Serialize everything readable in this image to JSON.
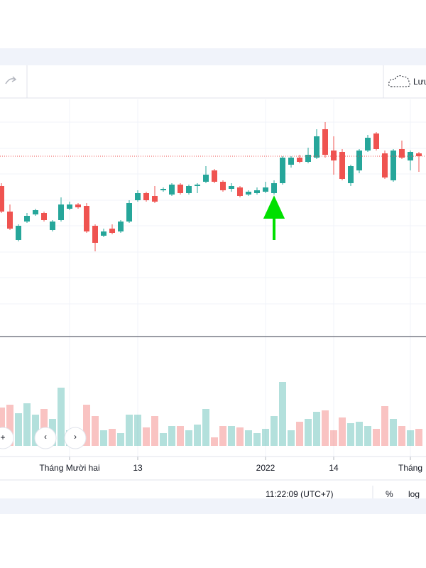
{
  "toolbar": {
    "save": "Lưu"
  },
  "status": {
    "time": "11:22:09 (UTC+7)",
    "percent": "%",
    "log": "log"
  },
  "nav": {
    "zoom_in": "+",
    "back": "‹",
    "forward": "›"
  },
  "chart_data": {
    "type": "candlestick",
    "categories": [
      null,
      null,
      null,
      null,
      null,
      null,
      null,
      null,
      "Tháng Mười hai",
      null,
      null,
      null,
      null,
      null,
      null,
      null,
      "13",
      null,
      null,
      null,
      null,
      null,
      null,
      null,
      null,
      null,
      null,
      null,
      null,
      null,
      null,
      "2022",
      null,
      null,
      null,
      null,
      null,
      null,
      null,
      "14",
      null,
      null,
      null,
      null,
      null,
      null,
      null,
      null,
      "Tháng",
      null
    ],
    "open": [
      208,
      172,
      132,
      158,
      168,
      170,
      146,
      160,
      176,
      182,
      180,
      152,
      138,
      148,
      144,
      158,
      188,
      198,
      194,
      202,
      196,
      210,
      198,
      208,
      214,
      230,
      214,
      204,
      206,
      196,
      198,
      200,
      198,
      212,
      238,
      248,
      242,
      248,
      288,
      258,
      256,
      212,
      230,
      258,
      282,
      254,
      216,
      260,
      244,
      254
    ],
    "high": [
      212,
      182,
      154,
      170,
      176,
      172,
      160,
      192,
      186,
      184,
      184,
      154,
      148,
      154,
      160,
      188,
      202,
      200,
      208,
      206,
      212,
      212,
      210,
      212,
      236,
      232,
      216,
      212,
      208,
      202,
      206,
      214,
      216,
      250,
      250,
      252,
      262,
      288,
      298,
      278,
      260,
      238,
      260,
      280,
      284,
      258,
      260,
      272,
      258,
      256
    ],
    "low": [
      170,
      146,
      130,
      156,
      166,
      158,
      144,
      158,
      174,
      176,
      142,
      116,
      136,
      140,
      142,
      156,
      186,
      186,
      184,
      200,
      194,
      196,
      196,
      198,
      212,
      212,
      200,
      200,
      192,
      194,
      196,
      198,
      196,
      210,
      234,
      240,
      240,
      246,
      248,
      224,
      216,
      208,
      226,
      256,
      258,
      218,
      214,
      246,
      230,
      228
    ],
    "close": [
      172,
      148,
      152,
      166,
      174,
      160,
      158,
      182,
      182,
      178,
      144,
      128,
      144,
      142,
      158,
      184,
      198,
      188,
      186,
      204,
      210,
      198,
      208,
      210,
      224,
      214,
      202,
      208,
      194,
      200,
      202,
      206,
      212,
      248,
      248,
      242,
      252,
      278,
      252,
      244,
      218,
      236,
      258,
      276,
      260,
      220,
      258,
      248,
      256,
      250
    ],
    "volume": [
      54,
      58,
      46,
      60,
      44,
      52,
      38,
      82,
      22,
      24,
      58,
      42,
      22,
      24,
      18,
      44,
      44,
      26,
      42,
      18,
      28,
      28,
      22,
      30,
      52,
      12,
      28,
      28,
      26,
      22,
      18,
      24,
      42,
      90,
      22,
      34,
      38,
      48,
      50,
      22,
      40,
      32,
      34,
      28,
      24,
      56,
      38,
      28,
      22,
      24
    ],
    "up_color": "#26a69a",
    "down_color": "#ef5350",
    "ylim": [
      0,
      330
    ],
    "ygrid": [
      42,
      79,
      115,
      152,
      188,
      225,
      261,
      298
    ],
    "volume_ylim": [
      0,
      150
    ],
    "price_line": 250
  }
}
